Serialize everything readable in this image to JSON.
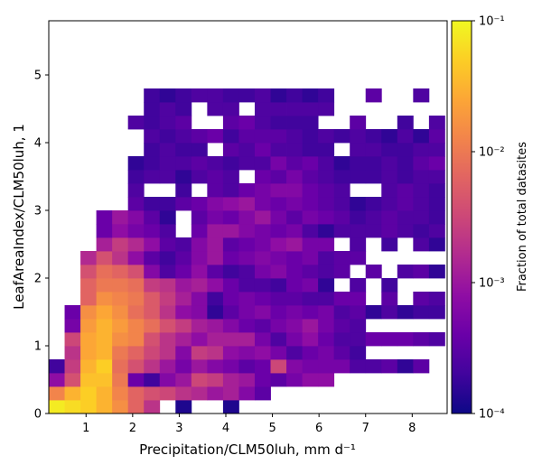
{
  "chart_data": {
    "type": "heatmap",
    "title": "",
    "xlabel": "Precipitation/CLM50luh,  mm d⁻¹",
    "ylabel": "LeafAreaIndex/CLM50luh,  1",
    "xlim": [
      0.2,
      8.75
    ],
    "ylim": [
      0,
      5.8
    ],
    "x_ticks": [
      "1",
      "2",
      "3",
      "4",
      "5",
      "6",
      "7",
      "8"
    ],
    "y_ticks": [
      "0",
      "1",
      "2",
      "3",
      "4",
      "5"
    ],
    "grid": false,
    "bin_width_x": 0.34,
    "bin_height_y": 0.2,
    "colormap": "plasma",
    "colorbar": {
      "label": "Fraction of total datasites",
      "scale": "log",
      "min": 0.0001,
      "max": 0.1,
      "tick_values": [
        0.0001,
        0.001,
        0.01,
        0.1
      ],
      "tick_labels": [
        "10⁻⁴",
        "10⁻³",
        "10⁻²",
        "10⁻¹"
      ]
    },
    "value_note": "log10 of fraction of total datasites per bin; rows listed from y=0 upward, columns from x=0.2; null = empty bin",
    "log10_values": [
      [
        -1.1,
        -1.2,
        -1.3,
        -1.5,
        -1.8,
        -2.2,
        -2.7,
        null,
        -3.9,
        null,
        null,
        -3.9,
        null,
        null,
        null,
        null,
        null,
        null,
        null,
        null,
        null,
        null,
        null,
        null,
        null
      ],
      [
        -1.9,
        -1.5,
        -1.3,
        -1.5,
        -1.9,
        -2.2,
        -2.4,
        -2.5,
        -2.7,
        -2.8,
        -3.0,
        -2.9,
        -3.2,
        -3.5,
        null,
        null,
        null,
        null,
        null,
        null,
        null,
        null,
        null,
        null,
        null
      ],
      [
        -3.1,
        -2.4,
        -1.4,
        -1.4,
        -2.0,
        -3.4,
        -3.7,
        -3.2,
        -3.0,
        -2.5,
        -2.6,
        -2.9,
        -3.0,
        -3.4,
        -3.5,
        -3.3,
        -3.1,
        -3.1,
        null,
        null,
        null,
        null,
        null,
        null,
        null
      ],
      [
        -3.7,
        -2.6,
        -1.5,
        -1.3,
        -2.1,
        -2.4,
        -2.7,
        -3.0,
        -3.3,
        -3.0,
        -3.2,
        -3.3,
        -3.5,
        -3.4,
        -2.5,
        -3.2,
        -3.3,
        -3.3,
        -3.3,
        -3.6,
        -3.6,
        -3.5,
        -3.8,
        -3.5,
        null
      ],
      [
        null,
        -2.7,
        -1.6,
        -1.5,
        -2.0,
        -2.2,
        -2.5,
        -2.7,
        -3.2,
        -2.6,
        -2.7,
        -3.1,
        -3.2,
        -3.1,
        -3.3,
        -3.6,
        -3.4,
        -3.3,
        -3.5,
        -3.7,
        null,
        null,
        null,
        null,
        null
      ],
      [
        null,
        -2.5,
        -1.6,
        -1.5,
        -1.8,
        -1.9,
        -2.4,
        -2.7,
        -2.9,
        -3.1,
        -2.9,
        -2.9,
        -2.9,
        -3.3,
        -3.6,
        -3.3,
        -3.1,
        -3.4,
        -3.6,
        -3.6,
        -3.4,
        -3.4,
        -3.4,
        -3.5,
        -3.6
      ],
      [
        null,
        -3.3,
        -1.7,
        -1.5,
        -1.7,
        -1.9,
        -2.1,
        -2.4,
        -2.6,
        -2.9,
        -3.0,
        -3.2,
        -3.4,
        -3.5,
        -3.3,
        -3.2,
        -3.0,
        -3.3,
        -3.5,
        -3.6,
        null,
        null,
        null,
        null,
        null
      ],
      [
        null,
        -3.4,
        -1.8,
        -1.6,
        -1.8,
        -2.1,
        -2.3,
        -2.7,
        -3.1,
        -3.2,
        -3.8,
        -3.5,
        -3.3,
        -3.2,
        -3.4,
        -3.3,
        -3.4,
        -3.3,
        -3.6,
        -3.5,
        -3.8,
        -3.6,
        -3.8,
        -3.7,
        -3.7
      ],
      [
        null,
        null,
        -2.2,
        -1.8,
        -1.9,
        -2.0,
        -2.3,
        -2.6,
        -2.9,
        -3.2,
        -3.7,
        -3.4,
        -3.3,
        -3.4,
        -3.5,
        -3.5,
        -3.6,
        -3.6,
        -3.4,
        -3.4,
        null,
        -3.5,
        null,
        -3.5,
        -3.6
      ],
      [
        null,
        null,
        -2.2,
        -2.0,
        -2.0,
        -2.1,
        -2.6,
        -2.7,
        -3.0,
        -2.9,
        -3.1,
        -3.4,
        -3.6,
        -3.6,
        -3.7,
        -3.4,
        -3.3,
        -3.8,
        null,
        -3.6,
        null,
        -3.7,
        null,
        null,
        null
      ],
      [
        null,
        null,
        -2.4,
        -2.1,
        -2.2,
        -2.4,
        -3.2,
        -3.6,
        -3.4,
        -3.1,
        -3.5,
        -3.7,
        -3.6,
        -3.3,
        -3.2,
        -3.4,
        -3.5,
        -3.6,
        -3.5,
        null,
        -3.5,
        null,
        -3.6,
        -3.5,
        -3.8
      ],
      [
        null,
        null,
        -2.8,
        -2.4,
        -2.7,
        -3.1,
        -3.5,
        -3.7,
        -3.5,
        -3.2,
        -3.0,
        -3.4,
        -3.3,
        -3.2,
        -3.3,
        -3.4,
        -3.3,
        -3.6,
        -3.5,
        -3.5,
        null,
        null,
        null,
        null,
        null
      ],
      [
        null,
        null,
        null,
        -2.9,
        -2.6,
        -2.8,
        -3.1,
        -3.5,
        -3.6,
        -3.2,
        -3.0,
        -3.5,
        -3.4,
        -3.3,
        -3.1,
        -3.0,
        -3.3,
        -3.3,
        null,
        -3.6,
        null,
        -3.7,
        null,
        -3.6,
        -3.8
      ],
      [
        null,
        null,
        null,
        -3.4,
        -3.1,
        -3.3,
        -3.4,
        -3.6,
        null,
        -3.4,
        -3.0,
        -3.0,
        -3.2,
        -3.3,
        -3.4,
        -3.3,
        -3.6,
        -3.8,
        -3.6,
        -3.6,
        -3.6,
        -3.5,
        -3.6,
        -3.7,
        -3.6
      ],
      [
        null,
        null,
        null,
        -3.4,
        -3.0,
        -3.2,
        -3.5,
        -3.8,
        null,
        -3.5,
        -3.3,
        -3.4,
        -3.2,
        -3.0,
        -3.3,
        -3.5,
        -3.3,
        -3.4,
        -3.5,
        -3.7,
        -3.6,
        -3.5,
        -3.6,
        -3.6,
        -3.7
      ],
      [
        null,
        null,
        null,
        null,
        null,
        -3.5,
        -3.7,
        -3.7,
        -3.5,
        -3.4,
        -3.2,
        -3.1,
        -3.0,
        -3.3,
        -3.4,
        -3.3,
        -3.4,
        -3.5,
        -3.6,
        -3.8,
        -3.7,
        -3.6,
        -3.5,
        -3.6,
        -3.7
      ],
      [
        null,
        null,
        null,
        null,
        null,
        -3.6,
        null,
        null,
        -3.7,
        null,
        -3.5,
        -3.6,
        -3.4,
        -3.3,
        -3.2,
        -3.2,
        -3.4,
        -3.5,
        -3.6,
        null,
        null,
        -3.6,
        -3.5,
        -3.6,
        -3.7
      ],
      [
        null,
        null,
        null,
        null,
        null,
        -3.7,
        -3.6,
        -3.6,
        -3.8,
        -3.6,
        -3.5,
        -3.6,
        null,
        -3.4,
        -3.5,
        -3.3,
        -3.5,
        -3.6,
        -3.7,
        -3.7,
        -3.7,
        -3.6,
        -3.7,
        -3.6,
        -3.6
      ],
      [
        null,
        null,
        null,
        null,
        null,
        -3.8,
        -3.7,
        -3.6,
        -3.6,
        -3.5,
        -3.6,
        -3.7,
        -3.6,
        -3.6,
        -3.3,
        -3.5,
        -3.4,
        -3.6,
        -3.8,
        -3.7,
        -3.7,
        -3.6,
        -3.7,
        -3.5,
        -3.4
      ],
      [
        null,
        null,
        null,
        null,
        null,
        null,
        -3.7,
        -3.6,
        -3.7,
        -3.7,
        null,
        -3.5,
        -3.6,
        -3.4,
        -3.6,
        -3.6,
        -3.7,
        -3.7,
        null,
        -3.6,
        -3.6,
        -3.7,
        -3.7,
        -3.6,
        -3.6
      ],
      [
        null,
        null,
        null,
        null,
        null,
        null,
        -3.6,
        -3.7,
        -3.6,
        -3.5,
        -3.4,
        -3.7,
        -3.5,
        -3.5,
        -3.5,
        -3.6,
        -3.7,
        -3.6,
        -3.7,
        -3.6,
        -3.7,
        -3.8,
        -3.6,
        -3.8,
        -3.5
      ],
      [
        null,
        null,
        null,
        null,
        null,
        -3.6,
        -3.7,
        -3.6,
        -3.5,
        null,
        null,
        -3.5,
        -3.4,
        -3.6,
        -3.7,
        -3.7,
        -3.7,
        null,
        null,
        -3.5,
        null,
        null,
        -3.7,
        null,
        -3.6
      ],
      [
        null,
        null,
        null,
        null,
        null,
        null,
        -3.7,
        -3.6,
        -3.7,
        null,
        -3.6,
        -3.6,
        null,
        -3.6,
        -3.6,
        -3.6,
        -3.6,
        -3.6,
        null,
        null,
        null,
        null,
        null,
        null,
        null
      ],
      [
        null,
        null,
        null,
        null,
        null,
        null,
        -3.7,
        -3.8,
        -3.7,
        -3.6,
        -3.6,
        -3.7,
        -3.7,
        -3.6,
        -3.8,
        -3.7,
        -3.8,
        -3.7,
        null,
        null,
        -3.5,
        null,
        null,
        -3.6,
        null
      ]
    ]
  }
}
